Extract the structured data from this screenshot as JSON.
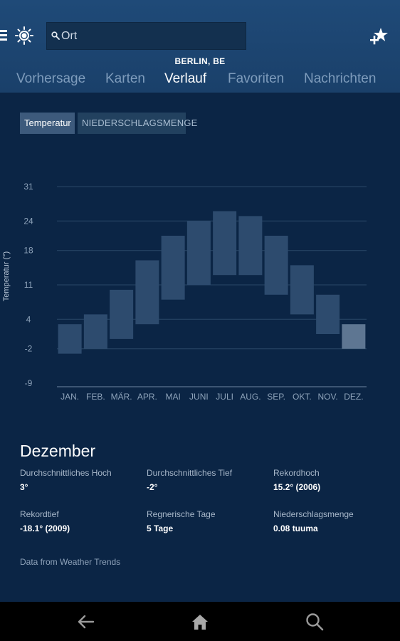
{
  "search": {
    "placeholder": "Ort"
  },
  "location": "BERLIN, BE",
  "tabs": [
    {
      "label": "Vorhersage"
    },
    {
      "label": "Karten"
    },
    {
      "label": "Verlauf"
    },
    {
      "label": "Favoriten"
    },
    {
      "label": "Nachrichten"
    }
  ],
  "active_tab": "Verlauf",
  "toggles": {
    "temperature": "Temperatur",
    "precipitation": "NIEDERSCHLAGSMENGE"
  },
  "chart_data": {
    "type": "bar",
    "ylabel": "Temperatur (°)",
    "yticks": [
      "31",
      "24",
      "18",
      "11",
      "4",
      "-2",
      "-9"
    ],
    "categories": [
      "JAN.",
      "FEB.",
      "MÄR.",
      "APR.",
      "MAI",
      "JUNI",
      "JULI",
      "AUG.",
      "SEP.",
      "OKT.",
      "NOV.",
      "DEZ."
    ],
    "lows": [
      -3,
      -2,
      0,
      3,
      8,
      11,
      13,
      13,
      9,
      5,
      1,
      -2
    ],
    "highs": [
      3,
      5,
      10,
      16,
      21,
      24,
      26,
      25,
      21,
      15,
      9,
      3
    ],
    "ylim": [
      -9,
      31
    ],
    "highlighted": "DEZ.",
    "bar_color": "#2d4b6e",
    "highlight_color": "#5e7692",
    "grid": true
  },
  "details": {
    "month": "Dezember",
    "avg_high_label": "Durchschnittliches Hoch",
    "avg_high_value": "3°",
    "avg_low_label": "Durchschnittliches Tief",
    "avg_low_value": "-2°",
    "record_high_label": "Rekordhoch",
    "record_high_value": "15.2° (2006)",
    "record_low_label": "Rekordtief",
    "record_low_value": "-18.1° (2009)",
    "rainy_days_label": "Regnerische Tage",
    "rainy_days_value": "5 Tage",
    "precip_label": "Niederschlagsmenge",
    "precip_value": "0.08 tuuma"
  },
  "source": "Data from Weather Trends",
  "icons": {
    "menu": "menu-icon",
    "sun": "sun-icon",
    "search": "search-icon",
    "favorite": "add-favorite-icon",
    "back": "back-arrow-icon",
    "home": "home-icon",
    "nav_search": "search-icon"
  }
}
